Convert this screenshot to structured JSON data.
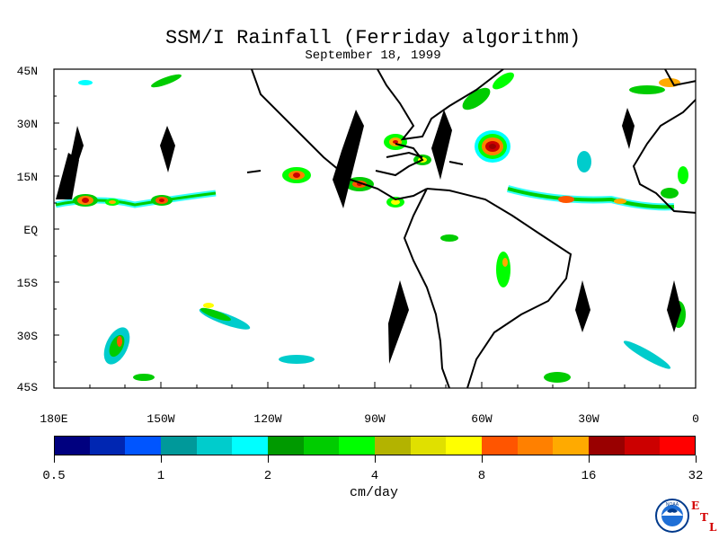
{
  "title": "SSM/I Rainfall (Ferriday algorithm)",
  "subtitle": "September 18, 1999",
  "lat_labels": [
    "45N",
    "30N",
    "15N",
    "EQ",
    "15S",
    "30S",
    "45S"
  ],
  "lon_labels": [
    "180E",
    "150W",
    "120W",
    "90W",
    "60W",
    "30W",
    "0"
  ],
  "colorbar": {
    "colors": [
      "#00007f",
      "#0026b2",
      "#0055ff",
      "#00999a",
      "#00cccc",
      "#00ffff",
      "#009a00",
      "#00cc00",
      "#00ff00",
      "#b3b300",
      "#e0e000",
      "#ffff00",
      "#ff5500",
      "#ff8000",
      "#ffaa00",
      "#990000",
      "#cc0000",
      "#ff0000"
    ],
    "tick_labels": [
      "0.5",
      "1",
      "2",
      "4",
      "8",
      "16",
      "32"
    ],
    "unit": "cm/day"
  },
  "logo": {
    "noaa_text": "NOAA",
    "etl_letters": [
      "E",
      "T",
      "L"
    ]
  }
}
